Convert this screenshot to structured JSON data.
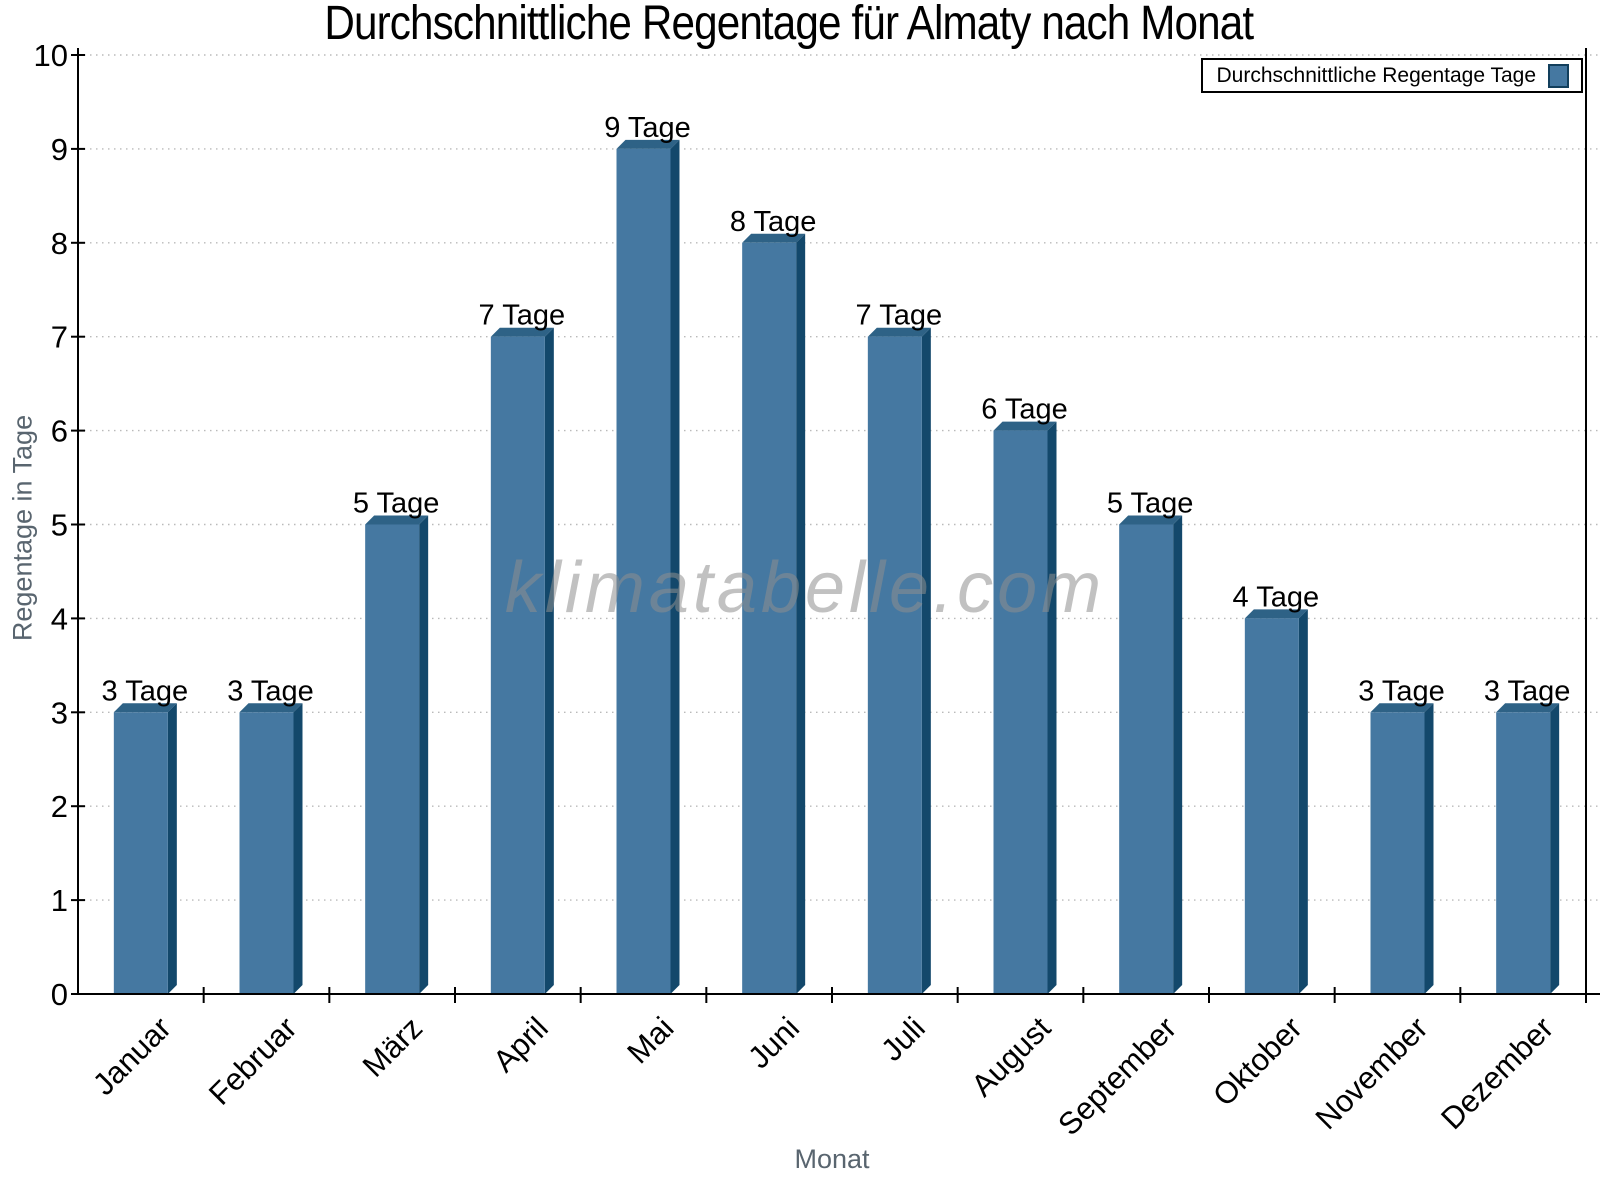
{
  "title": "Durchschnittliche Regentage für Almaty nach Monat",
  "watermark": "klimatabelle.com",
  "legend": {
    "label": "Durchschnittliche Regentage Tage"
  },
  "chart_data": {
    "type": "bar",
    "title": "Durchschnittliche Regentage für Almaty nach Monat",
    "categories": [
      "Januar",
      "Februar",
      "März",
      "April",
      "Mai",
      "Juni",
      "Juli",
      "August",
      "September",
      "Oktober",
      "November",
      "Dezember"
    ],
    "values": [
      3,
      3,
      5,
      7,
      9,
      8,
      7,
      6,
      5,
      4,
      3,
      3
    ],
    "bar_labels": [
      "3 Tage",
      "3 Tage",
      "5 Tage",
      "7 Tage",
      "9 Tage",
      "8 Tage",
      "7 Tage",
      "6 Tage",
      "5 Tage",
      "4 Tage",
      "3 Tage",
      "3 Tage"
    ],
    "xlabel": "Monat",
    "ylabel": "Regentage in Tage",
    "ylim": [
      0,
      10
    ],
    "ytick_step": 1,
    "yticks": [
      0,
      1,
      2,
      3,
      4,
      5,
      6,
      7,
      8,
      9,
      10
    ],
    "legend_entries": [
      "Durchschnittliche Regentage Tage"
    ],
    "legend_position": "top-right",
    "grid": "horizontal-dotted",
    "style": "3d-bars",
    "colors": {
      "bar_front": "#4578a1",
      "bar_side": "#13486b",
      "bar_top": "#2e6286",
      "grid": "#bababa",
      "axis": "#000000",
      "tick_label": "#000000",
      "value_label": "#000000",
      "axis_title": "#59656f",
      "watermark": "#8f8f8f"
    }
  }
}
